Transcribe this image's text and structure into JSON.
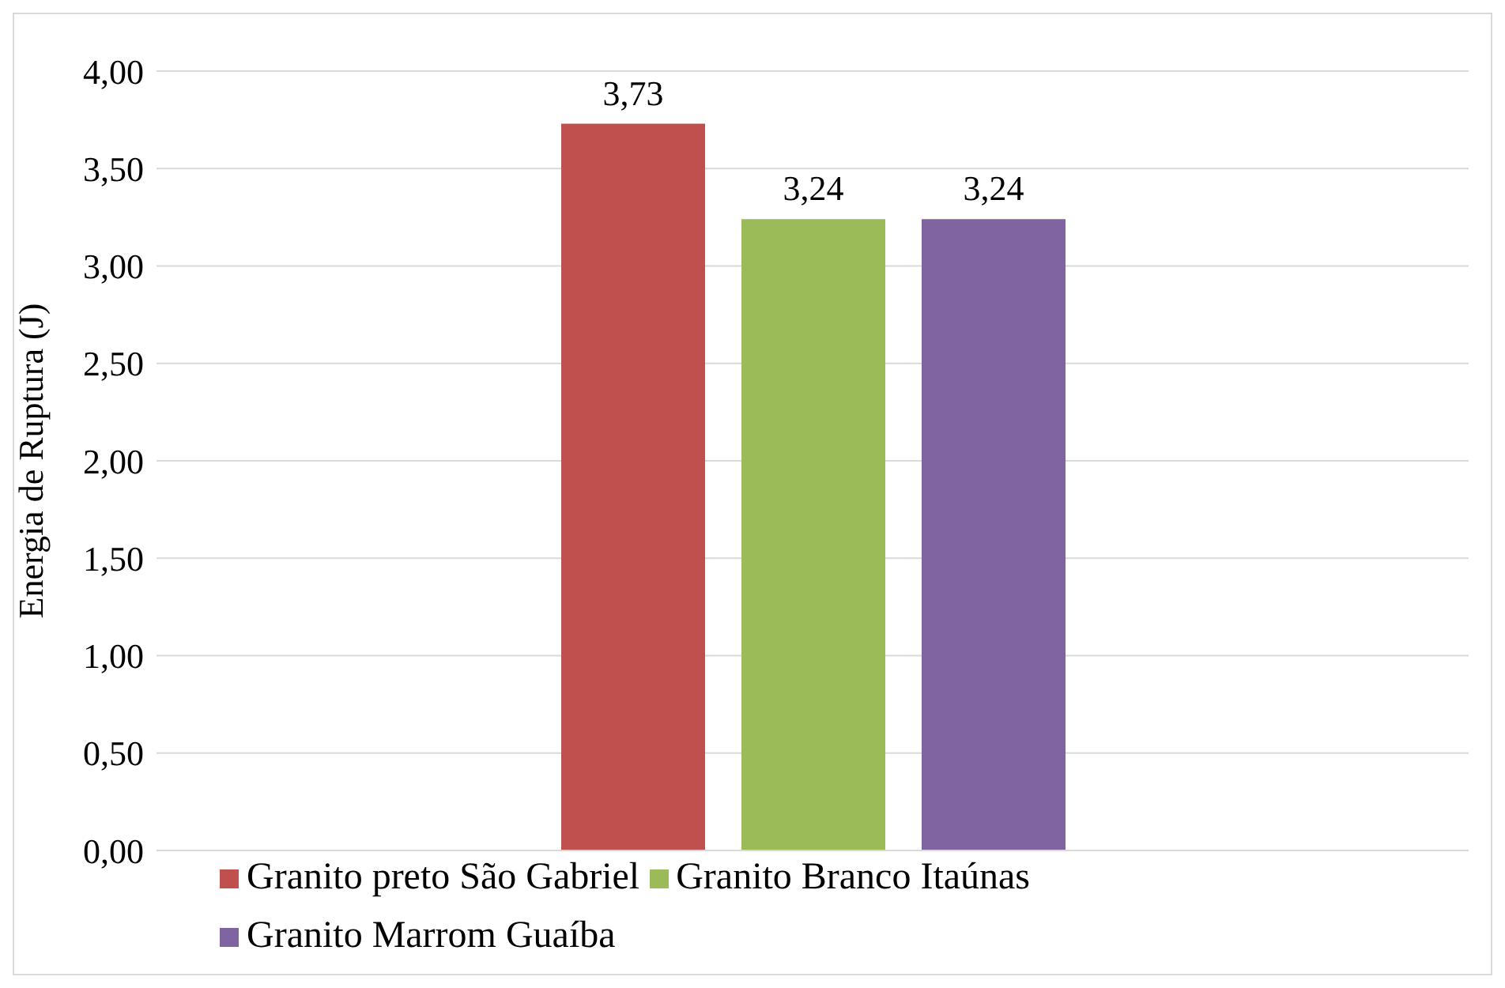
{
  "chart_data": {
    "type": "bar",
    "ylabel": "Energia de Ruptura (J)",
    "categories": [
      null
    ],
    "series": [
      {
        "name": "Granito preto São Gabriel",
        "color": "#c0504d",
        "values": [
          3.73
        ],
        "value_labels": [
          "3,73"
        ]
      },
      {
        "name": "Granito Branco Itaúnas",
        "color": "#9bbb59",
        "values": [
          3.24
        ],
        "value_labels": [
          "3,24"
        ]
      },
      {
        "name": "Granito Marrom Guaíba",
        "color": "#8064a2",
        "values": [
          3.24
        ],
        "value_labels": [
          "3,24"
        ]
      }
    ],
    "ylim": [
      0,
      4
    ],
    "yticks": [
      {
        "value": 0,
        "label": "0,00"
      },
      {
        "value": 0.5,
        "label": "0,50"
      },
      {
        "value": 1,
        "label": "1,00"
      },
      {
        "value": 1.5,
        "label": "1,50"
      },
      {
        "value": 2,
        "label": "2,00"
      },
      {
        "value": 2.5,
        "label": "2,50"
      },
      {
        "value": 3,
        "label": "3,00"
      },
      {
        "value": 3.5,
        "label": "3,50"
      },
      {
        "value": 4,
        "label": "4,00"
      }
    ],
    "grid": "y",
    "legend": "bottom"
  }
}
